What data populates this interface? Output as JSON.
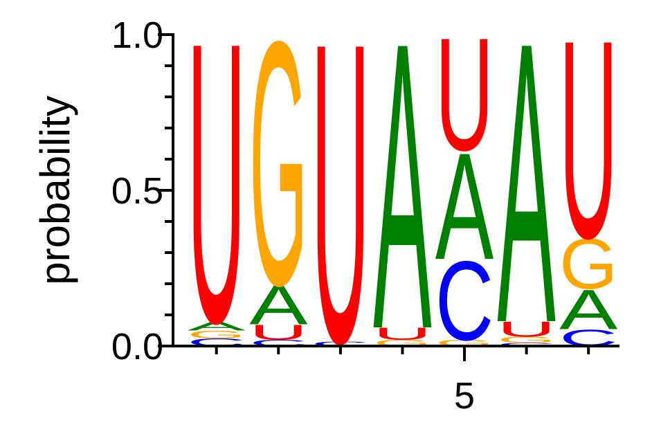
{
  "chart_data": {
    "type": "logo",
    "ylabel": "probability",
    "x": [
      1,
      2,
      3,
      4,
      5,
      6,
      7
    ],
    "series": [
      {
        "name": "A",
        "color": "#008000",
        "values": [
          0.03,
          0.13,
          0,
          0.94,
          0.35,
          0.92,
          0.13
        ]
      },
      {
        "name": "C",
        "color": "#0000ff",
        "values": [
          0.025,
          0.02,
          0.015,
          0,
          0.26,
          0.01,
          0.055
        ]
      },
      {
        "name": "G",
        "color": "#ffa500",
        "values": [
          0.025,
          0.8,
          0,
          0.02,
          0.02,
          0.02,
          0.165
        ]
      },
      {
        "name": "U",
        "color": "#ff0000",
        "values": [
          0.92,
          0.05,
          0.985,
          0.04,
          0.37,
          0.05,
          0.65
        ]
      }
    ],
    "xlim": [
      0.3,
      7.5
    ],
    "xticks": [
      5
    ],
    "xminor": [
      1,
      2,
      3,
      4,
      5,
      6,
      7
    ],
    "ylim": [
      0,
      1
    ],
    "yticks": [
      {
        "value": 0,
        "label": "0.0"
      },
      {
        "value": 0.5,
        "label": "0.5"
      },
      {
        "value": 1,
        "label": "1.0"
      }
    ],
    "yminor": [
      0.1,
      0.2,
      0.3,
      0.4,
      0.6,
      0.7,
      0.8,
      0.9
    ]
  }
}
